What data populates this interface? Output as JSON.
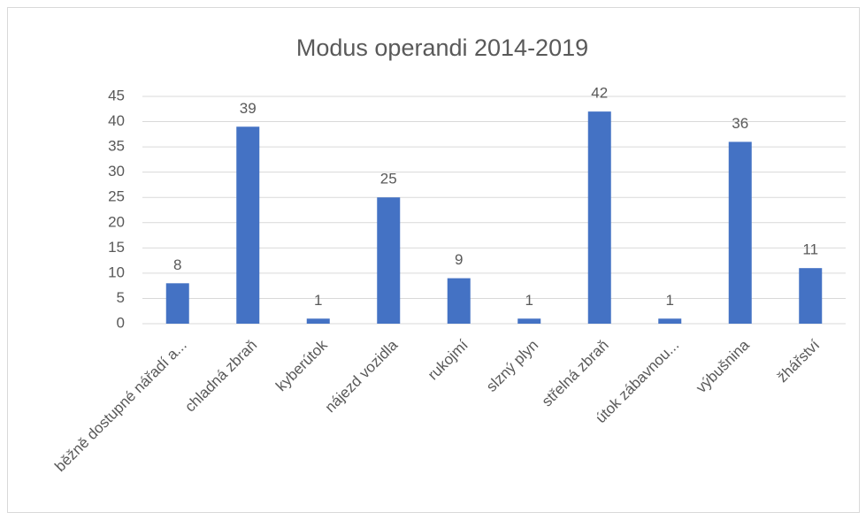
{
  "chart_data": {
    "type": "bar",
    "title": "Modus operandi 2014-2019",
    "categories": [
      "běžně dostupné nářadí a...",
      "chladná zbraň",
      "kyberútok",
      "nájezd vozidla",
      "rukojmí",
      "slzný plyn",
      "střelná zbraň",
      "útok zábavnou...",
      "výbušnina",
      "žhářství"
    ],
    "values": [
      8,
      39,
      1,
      25,
      9,
      1,
      42,
      1,
      36,
      11
    ],
    "color": "#4472c4",
    "ylim": [
      0,
      45
    ],
    "yticks": [
      0,
      5,
      10,
      15,
      20,
      25,
      30,
      35,
      40,
      45
    ],
    "grid": true,
    "data_labels": true
  }
}
